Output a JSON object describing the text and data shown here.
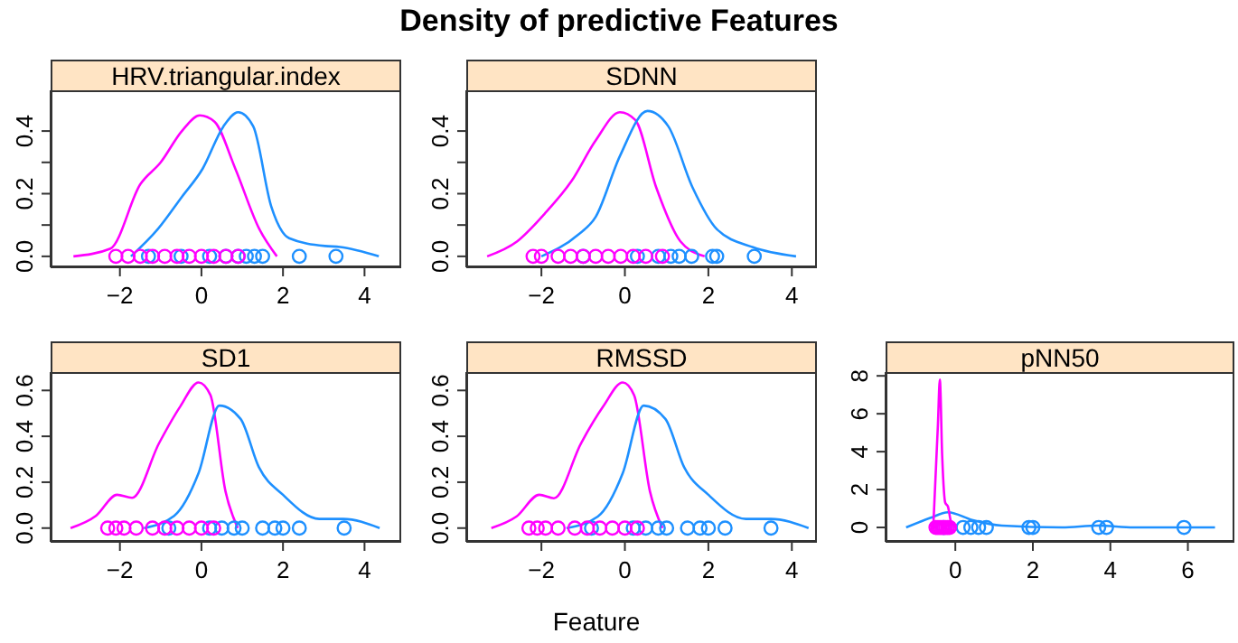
{
  "chart_data": [
    {
      "type": "line",
      "title": "HRV.triangular.index",
      "annotations": [
        "Density of predictive Features"
      ],
      "xlim": [
        -3.7,
        4.9
      ],
      "ylim": [
        -0.035,
        0.53
      ],
      "xticks": [
        -2,
        0,
        2,
        4
      ],
      "yticks": [
        {
          "value": 0,
          "label": "0.0"
        },
        {
          "value": 0.1,
          "label": null
        },
        {
          "value": 0.2,
          "label": "0.2"
        },
        {
          "value": 0.3,
          "label": null
        },
        {
          "value": 0.4,
          "label": "0.4"
        }
      ],
      "series": [
        {
          "color": "#ff00ff",
          "x": [
            -3.14,
            -2.23,
            -1.5,
            -1.0,
            -0.48,
            -0.04,
            0.32,
            0.83,
            1.42,
            1.85
          ],
          "values": [
            0,
            0.025,
            0.23,
            0.3,
            0.4,
            0.45,
            0.43,
            0.28,
            0.087,
            0
          ]
        },
        {
          "color": "#1e90ff",
          "x": [
            -1.73,
            -1.07,
            -0.48,
            0.03,
            0.54,
            0.9,
            1.27,
            1.71,
            2.15,
            3.03,
            3.4,
            4.35
          ],
          "values": [
            0,
            0.087,
            0.19,
            0.28,
            0.415,
            0.46,
            0.415,
            0.16,
            0.058,
            0.033,
            0.03,
            0
          ]
        },
        {
          "type": "scatter",
          "marker": "circle",
          "color": "#1e90ff",
          "x": [
            -1.3,
            -0.5,
            0.2,
            0.6,
            0.9,
            1.1,
            1.3,
            1.5,
            2.4,
            3.3
          ],
          "values": [
            0,
            0,
            0,
            0,
            0,
            0,
            0,
            0,
            0,
            0
          ]
        },
        {
          "type": "scatter",
          "marker": "circle",
          "color": "#ff00ff",
          "x": [
            -2.1,
            -1.8,
            -1.5,
            -1.2,
            -0.9,
            -0.6,
            -0.3,
            0,
            0.3,
            0.6,
            0.9
          ],
          "values": [
            0,
            0,
            0,
            0,
            0,
            0,
            0,
            0,
            0,
            0,
            0
          ]
        }
      ]
    },
    {
      "type": "line",
      "title": "SDNN",
      "xlim": [
        -3.8,
        4.6
      ],
      "ylim": [
        -0.035,
        0.53
      ],
      "xticks": [
        -2,
        0,
        2,
        4
      ],
      "yticks": [
        {
          "value": 0,
          "label": "0.0"
        },
        {
          "value": 0.1,
          "label": null
        },
        {
          "value": 0.2,
          "label": "0.2"
        },
        {
          "value": 0.3,
          "label": null
        },
        {
          "value": 0.4,
          "label": "0.4"
        }
      ],
      "series": [
        {
          "color": "#ff00ff",
          "x": [
            -3.3,
            -2.58,
            -1.93,
            -1.28,
            -0.7,
            -0.12,
            0.25,
            0.75,
            1.33,
            1.91
          ],
          "values": [
            0,
            0.048,
            0.135,
            0.24,
            0.37,
            0.46,
            0.435,
            0.22,
            0.048,
            0
          ]
        },
        {
          "color": "#1e90ff",
          "x": [
            -2.0,
            -1.13,
            -0.7,
            -0.12,
            0.54,
            1.04,
            1.62,
            2.2,
            3.07,
            4.1
          ],
          "values": [
            0,
            0.068,
            0.126,
            0.32,
            0.464,
            0.415,
            0.22,
            0.087,
            0.029,
            0
          ]
        },
        {
          "type": "scatter",
          "marker": "circle",
          "color": "#1e90ff",
          "x": [
            -1.0,
            0.3,
            0.8,
            1.1,
            1.3,
            1.6,
            2.1,
            2.2,
            3.1
          ],
          "values": [
            0,
            0,
            0,
            0,
            0,
            0,
            0,
            0,
            0
          ]
        },
        {
          "type": "scatter",
          "marker": "circle",
          "color": "#ff00ff",
          "x": [
            -2.2,
            -2.0,
            -1.6,
            -1.3,
            -1.0,
            -0.7,
            -0.4,
            -0.1,
            0.2,
            0.5,
            0.9
          ],
          "values": [
            0,
            0,
            0,
            0,
            0,
            0,
            0,
            0,
            0,
            0,
            0
          ]
        }
      ]
    },
    {
      "type": "line",
      "title": "SD1",
      "xlim": [
        -3.7,
        4.9
      ],
      "ylim": [
        -0.06,
        0.68
      ],
      "xticks": [
        -2,
        0,
        2,
        4
      ],
      "yticks": [
        {
          "value": 0,
          "label": "0.0"
        },
        {
          "value": 0.2,
          "label": "0.2"
        },
        {
          "value": 0.4,
          "label": "0.4"
        },
        {
          "value": 0.6,
          "label": "0.6"
        }
      ],
      "series": [
        {
          "color": "#ff00ff",
          "x": [
            -3.21,
            -2.59,
            -2.07,
            -1.7,
            -1.04,
            -0.52,
            -0.07,
            0.22,
            0.59,
            0.89
          ],
          "values": [
            0,
            0.053,
            0.145,
            0.132,
            0.37,
            0.53,
            0.635,
            0.58,
            0.16,
            0
          ]
        },
        {
          "color": "#1e90ff",
          "x": [
            -1.41,
            -0.67,
            -0.07,
            0.44,
            0.96,
            1.41,
            2.0,
            2.89,
            3.48,
            4.37
          ],
          "values": [
            0,
            0.053,
            0.24,
            0.534,
            0.476,
            0.265,
            0.145,
            0.04,
            0.04,
            0
          ]
        },
        {
          "type": "scatter",
          "marker": "circle",
          "color": "#1e90ff",
          "x": [
            -0.8,
            0.2,
            0.5,
            0.8,
            1.0,
            1.5,
            1.8,
            2.0,
            2.4,
            3.5
          ],
          "values": [
            0,
            0,
            0,
            0,
            0,
            0,
            0,
            0,
            0,
            0
          ]
        },
        {
          "type": "scatter",
          "marker": "circle",
          "color": "#ff00ff",
          "x": [
            -2.3,
            -2.1,
            -1.9,
            -1.6,
            -1.2,
            -0.9,
            -0.6,
            -0.3,
            0,
            0.3
          ],
          "values": [
            0,
            0,
            0,
            0,
            0,
            0,
            0,
            0,
            0,
            0
          ]
        }
      ]
    },
    {
      "type": "line",
      "title": "RMSSD",
      "xlabel": "Feature",
      "xlim": [
        -3.8,
        4.6
      ],
      "ylim": [
        -0.06,
        0.68
      ],
      "xticks": [
        -2,
        0,
        2,
        4
      ],
      "yticks": [
        {
          "value": 0,
          "label": "0.0"
        },
        {
          "value": 0.2,
          "label": "0.2"
        },
        {
          "value": 0.4,
          "label": "0.4"
        },
        {
          "value": 0.6,
          "label": "0.6"
        }
      ],
      "series": [
        {
          "color": "#ff00ff",
          "x": [
            -3.2,
            -2.6,
            -2.05,
            -1.7,
            -1.05,
            -0.52,
            -0.05,
            0.22,
            0.6,
            0.9
          ],
          "values": [
            0,
            0.05,
            0.145,
            0.13,
            0.37,
            0.53,
            0.635,
            0.58,
            0.16,
            0
          ]
        },
        {
          "color": "#1e90ff",
          "x": [
            -1.4,
            -0.65,
            -0.05,
            0.45,
            0.97,
            1.42,
            2.0,
            2.9,
            3.5,
            4.4
          ],
          "values": [
            0,
            0.05,
            0.24,
            0.534,
            0.476,
            0.265,
            0.145,
            0.04,
            0.04,
            0
          ]
        },
        {
          "type": "scatter",
          "marker": "circle",
          "color": "#1e90ff",
          "x": [
            -0.8,
            0.2,
            0.5,
            0.8,
            1.0,
            1.5,
            1.8,
            2.0,
            2.4,
            3.5
          ],
          "values": [
            0,
            0,
            0,
            0,
            0,
            0,
            0,
            0,
            0,
            0
          ]
        },
        {
          "type": "scatter",
          "marker": "circle",
          "color": "#ff00ff",
          "x": [
            -2.3,
            -2.1,
            -1.9,
            -1.6,
            -1.2,
            -0.9,
            -0.6,
            -0.3,
            0,
            0.3
          ],
          "values": [
            0,
            0,
            0,
            0,
            0,
            0,
            0,
            0,
            0,
            0
          ]
        }
      ]
    },
    {
      "type": "line",
      "title": "pNN50",
      "xlim": [
        -1.8,
        7.2
      ],
      "ylim": [
        -0.76,
        8.2
      ],
      "xticks": [
        0,
        2,
        4,
        6
      ],
      "yticks": [
        0,
        2,
        4,
        6,
        8
      ],
      "series": [
        {
          "color": "#1e90ff",
          "x": [
            -1.27,
            -0.65,
            -0.19,
            0.43,
            1.2,
            2.75,
            3.68,
            4.6,
            6.7
          ],
          "values": [
            0,
            0.5,
            0.8,
            0.4,
            0.1,
            0,
            0.1,
            0,
            0
          ]
        },
        {
          "type": "scatter",
          "marker": "circle",
          "color": "#1e90ff",
          "x": [
            -0.3,
            0.2,
            0.4,
            0.6,
            0.8,
            1.9,
            2.0,
            3.7,
            3.9,
            5.9
          ],
          "values": [
            0,
            0,
            0,
            0,
            0,
            0,
            0,
            0,
            0,
            0
          ]
        },
        {
          "type": "scatter",
          "marker": "circle",
          "color": "#ff00ff",
          "x": [
            -0.5,
            -0.45,
            -0.4,
            -0.35,
            -0.3,
            -0.25,
            -0.2,
            -0.15
          ],
          "values": [
            0,
            0,
            0,
            0,
            0,
            0,
            0,
            0
          ]
        },
        {
          "color": "#ff00ff",
          "x": [
            -0.57,
            -0.45,
            -0.4,
            -0.34,
            -0.26,
            -0.19,
            -0.11,
            0.05
          ],
          "values": [
            0,
            5.4,
            7.8,
            3.8,
            1.3,
            1.1,
            0.3,
            0
          ]
        }
      ]
    }
  ]
}
